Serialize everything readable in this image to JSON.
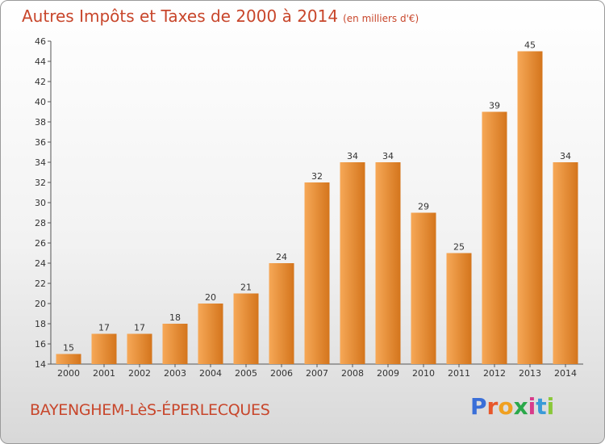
{
  "title": "Autres Impôts et Taxes de 2000 à 2014",
  "unit_note": "(en milliers d'€)",
  "commune": "BAYENGHEM-LèS-ÉPERLECQUES",
  "logo": {
    "text": "Proxiti",
    "letter_colors": [
      "#3a6fd8",
      "#e8572a",
      "#f0a020",
      "#2aa84a",
      "#d83a8a",
      "#3a9ad8",
      "#8ac83a"
    ]
  },
  "colors": {
    "accent": "#c8462b",
    "bar_light": "#f6a857",
    "bar_dark": "#d4751c"
  },
  "chart_data": {
    "type": "bar",
    "categories": [
      "2000",
      "2001",
      "2002",
      "2003",
      "2004",
      "2005",
      "2006",
      "2007",
      "2008",
      "2009",
      "2010",
      "2011",
      "2012",
      "2013",
      "2014"
    ],
    "values": [
      15,
      17,
      17,
      18,
      20,
      21,
      24,
      32,
      34,
      34,
      29,
      25,
      39,
      45,
      34
    ],
    "ylim": [
      14,
      46
    ],
    "yticks": [
      14,
      16,
      18,
      20,
      22,
      24,
      26,
      28,
      30,
      32,
      34,
      36,
      38,
      40,
      42,
      44,
      46
    ],
    "grid": false
  }
}
